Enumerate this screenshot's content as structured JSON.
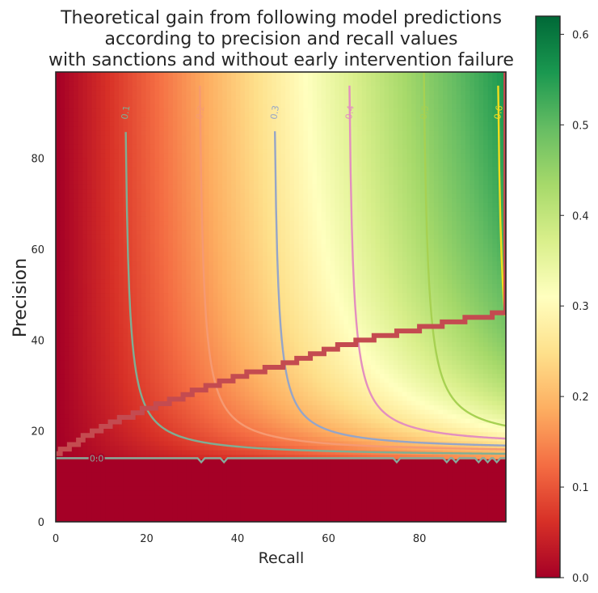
{
  "chart_data": {
    "type": "heatmap",
    "title_lines": [
      "Theoretical gain from following model predictions",
      "according to precision and recall values",
      "with sanctions and without early intervention failure"
    ],
    "xlabel": "Recall",
    "ylabel": "Precision",
    "xlim": [
      0,
      99
    ],
    "ylim": [
      0,
      99
    ],
    "x_ticks": [
      0,
      20,
      40,
      60,
      80
    ],
    "y_ticks": [
      0,
      20,
      40,
      60,
      80
    ],
    "colorbar": {
      "colormap": "RdYlGn",
      "range": [
        0,
        0.62
      ],
      "ticks": [
        0.0,
        0.1,
        0.2,
        0.3,
        0.4,
        0.5,
        0.6
      ],
      "tick_labels": [
        "0.0",
        "0.1",
        "0.2",
        "0.3",
        "0.4",
        "0.5",
        "0.6"
      ]
    },
    "zero_threshold_precision": 14,
    "contour_levels": [
      {
        "level": 0.0,
        "label": "0.0",
        "color": "#88aa9a",
        "label_recall": 9,
        "precision": 14,
        "notches": [
          32,
          37,
          75,
          86,
          88,
          93,
          95,
          97
        ]
      },
      {
        "level": 0.1,
        "label": "0.1",
        "color": "#7fae94",
        "label_recall": 15.3,
        "asymptote_recall": 14.6,
        "asymptote_precision": 14.3
      },
      {
        "level": 0.2,
        "label": "0.2",
        "color": "#f69a72",
        "label_recall": 31.7,
        "asymptote_recall": 30.9,
        "asymptote_precision": 15.0
      },
      {
        "level": 0.3,
        "label": "0.3",
        "color": "#95a5c8",
        "label_recall": 48.1,
        "asymptote_recall": 47.4,
        "asymptote_precision": 15.7
      },
      {
        "level": 0.4,
        "label": "0.4",
        "color": "#e38fbf",
        "label_recall": 64.6,
        "asymptote_recall": 63.8,
        "asymptote_precision": 16.5
      },
      {
        "level": 0.5,
        "label": "0.5",
        "color": "#a7d152",
        "label_recall": 81.0,
        "asymptote_recall": 80.1,
        "asymptote_precision": 17.4
      },
      {
        "level": 0.6,
        "label": "0.6",
        "color": "#f2dd1e",
        "label_recall": 97.3,
        "asymptote_recall": 96.5,
        "asymptote_precision": 18.3
      }
    ],
    "sanction_boundary": {
      "color": "#c44b50",
      "points": [
        [
          0,
          15
        ],
        [
          10,
          21
        ],
        [
          20,
          25
        ],
        [
          30,
          28.5
        ],
        [
          40,
          32
        ],
        [
          50,
          34.5
        ],
        [
          60,
          38
        ],
        [
          70,
          40.5
        ],
        [
          80,
          42.5
        ],
        [
          90,
          44.5
        ],
        [
          99,
          46
        ],
        [
          99,
          99
        ]
      ]
    }
  }
}
